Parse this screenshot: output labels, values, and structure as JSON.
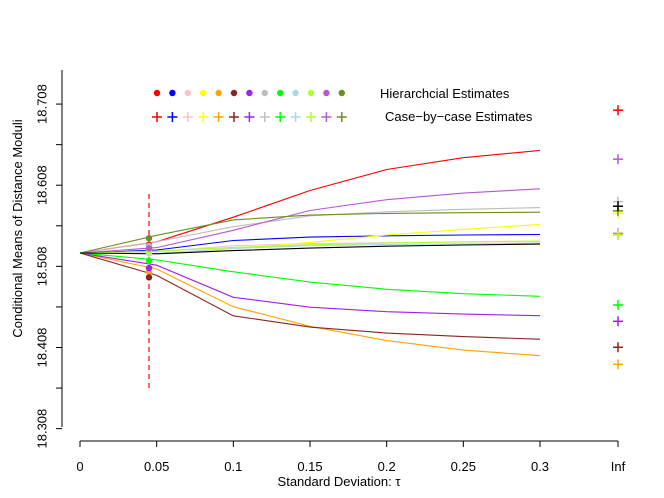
{
  "chart_data": {
    "type": "line",
    "xlabel": "Standard Deviation: τ",
    "ylabel": "Conditional Means of Distance Moduli",
    "x": [
      0,
      0.05,
      0.1,
      0.15,
      0.2,
      0.25,
      0.3
    ],
    "x_tick_labels": [
      "0",
      "0.05",
      "0.1",
      "0.15",
      "0.2",
      "0.25",
      "0.3",
      "Inf"
    ],
    "y_ticks": [
      18.308,
      18.408,
      18.508,
      18.608,
      18.708
    ],
    "y_tick_labels": [
      "18.308",
      "18.408",
      "18.508",
      "18.608",
      "18.708"
    ],
    "xlim": [
      0,
      0.3
    ],
    "ylim": [
      18.31,
      18.75
    ],
    "legend": {
      "hierarchical_label": "Hierarchcial Estimates",
      "case_label": "Case−by−case Estimates"
    },
    "hierarchical_estimate_tau": 0.045,
    "marker_line_color": "#ff0000",
    "series": [
      {
        "color": "#ff0000",
        "values": [
          18.5245,
          18.5383,
          18.5686,
          18.6015,
          18.6274,
          18.6419,
          18.6509
        ],
        "inf": 18.7005,
        "hier": 18.5344
      },
      {
        "color": "#0000ff",
        "values": [
          18.5245,
          18.5282,
          18.5398,
          18.544,
          18.5456,
          18.5467,
          18.5472
        ],
        "inf": 18.5491,
        "hier": 18.5285
      },
      {
        "color": "#ffc0cb",
        "values": [
          18.5245,
          18.5261,
          18.5334,
          18.536,
          18.5372,
          18.538,
          18.5383
        ],
        "inf": 18.5496,
        "hier": 18.5264
      },
      {
        "color": "#ffff00",
        "values": [
          18.5245,
          18.5239,
          18.5298,
          18.5375,
          18.5466,
          18.5536,
          18.5597
        ],
        "inf": 18.5735,
        "hier": 18.524
      },
      {
        "color": "#ffa500",
        "values": [
          18.5245,
          18.5047,
          18.4583,
          18.4341,
          18.4165,
          18.4048,
          18.3979
        ],
        "inf": 18.3872,
        "hier": 18.5011
      },
      {
        "color": "#8b2323",
        "values": [
          18.5245,
          18.4969,
          18.447,
          18.4331,
          18.4257,
          18.4214,
          18.4182
        ],
        "inf": 18.4083,
        "hier": 18.4944
      },
      {
        "color": "#a020f0",
        "values": [
          18.5245,
          18.5094,
          18.4699,
          18.4576,
          18.4521,
          18.4491,
          18.4472
        ],
        "inf": 18.4403,
        "hier": 18.5059
      },
      {
        "color": "#bebebe",
        "values": [
          18.5245,
          18.5384,
          18.5569,
          18.5703,
          18.5752,
          18.5783,
          18.5804
        ],
        "inf": 18.5877,
        "hier": 18.5332
      },
      {
        "color": "#00ff00",
        "values": [
          18.5245,
          18.516,
          18.5013,
          18.4886,
          18.4797,
          18.4743,
          18.4711
        ],
        "inf": 18.4604,
        "hier": 18.5147
      },
      {
        "color": "#add8e6",
        "values": [
          18.5245,
          18.5239,
          18.5301,
          18.5334,
          18.5349,
          18.5357,
          18.5364
        ],
        "inf": 18.5466,
        "hier": 18.5239
      },
      {
        "color": "#adff2f",
        "values": [
          18.5245,
          18.5268,
          18.5313,
          18.5346,
          18.5367,
          18.5383,
          18.5393
        ],
        "inf": 18.5469,
        "hier": 18.5266
      },
      {
        "color": "#ba55d3",
        "values": [
          18.5245,
          18.5311,
          18.5524,
          18.5768,
          18.5901,
          18.5983,
          18.6036
        ],
        "inf": 18.6401,
        "hier": 18.5302
      },
      {
        "color": "#6b8e23",
        "values": [
          18.5245,
          18.5463,
          18.5653,
          18.5712,
          18.5732,
          18.5741,
          18.5747
        ],
        "inf": 18.5764,
        "hier": 18.5427
      },
      {
        "color": "#000000",
        "values": [
          18.5245,
          18.5235,
          18.5274,
          18.5305,
          18.5328,
          18.5343,
          18.5354
        ],
        "inf": 18.5821,
        "hier": null
      }
    ]
  }
}
